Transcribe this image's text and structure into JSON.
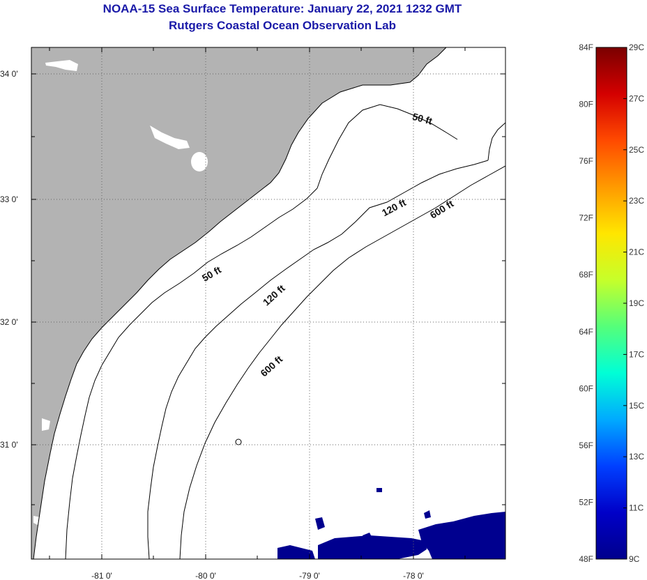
{
  "header": {
    "title": "NOAA-15 Sea Surface Temperature:  January 22, 2021 1232 GMT",
    "subtitle": "Rutgers Coastal Ocean Observation Lab"
  },
  "map": {
    "lon_ticks": [
      "-81 0'",
      "-80 0'",
      "-79 0'",
      "-78 0'"
    ],
    "lat_ticks": [
      "34 0'",
      "33 0'",
      "32 0'",
      "31 0'"
    ],
    "contour_labels": [
      "50 ft",
      "50 ft",
      "120 ft",
      "120 ft",
      "600 ft",
      "600 ft"
    ],
    "colors": {
      "land": "#b3b3b3",
      "cold_sst": "#00008f",
      "title": "#1a1aa8"
    }
  },
  "colorbar": {
    "fahrenheit": [
      "84F",
      "80F",
      "76F",
      "72F",
      "68F",
      "64F",
      "60F",
      "56F",
      "52F",
      "48F"
    ],
    "celsius": [
      "29C",
      "27C",
      "25C",
      "23C",
      "21C",
      "19C",
      "17C",
      "15C",
      "13C",
      "11C",
      "9C"
    ],
    "gradient": [
      "#7a0000",
      "#d40000",
      "#ff4a00",
      "#ff9a00",
      "#ffe600",
      "#c6ff2a",
      "#55ff7a",
      "#00ffd6",
      "#00aaff",
      "#0040ff",
      "#0000c8",
      "#00008c"
    ]
  }
}
